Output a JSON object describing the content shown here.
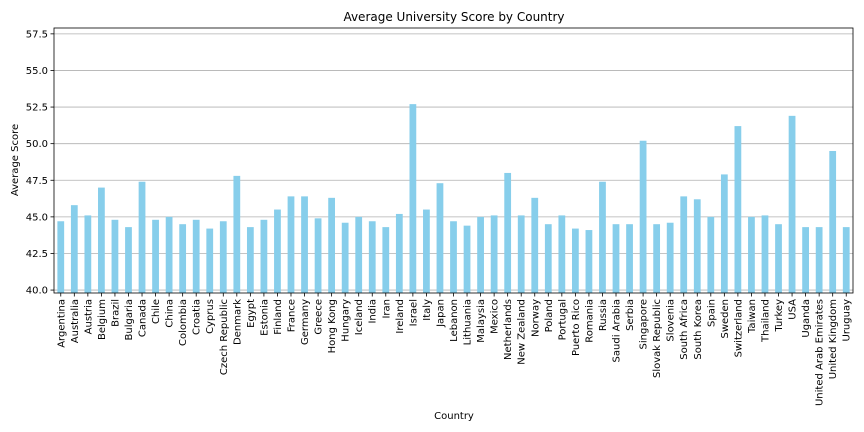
{
  "chart_data": {
    "type": "bar",
    "title": "Average University Score by Country",
    "xlabel": "Country",
    "ylabel": "Average Score",
    "ylim": [
      39.8,
      57.9
    ],
    "yticks": [
      40.0,
      42.5,
      45.0,
      47.5,
      50.0,
      52.5,
      55.0,
      57.5
    ],
    "ytick_labels": [
      "40.0",
      "42.5",
      "45.0",
      "47.5",
      "50.0",
      "52.5",
      "55.0",
      "57.5"
    ],
    "grid": "y",
    "bar_color": "#87ceeb",
    "categories": [
      "Argentina",
      "Australia",
      "Austria",
      "Belgium",
      "Brazil",
      "Bulgaria",
      "Canada",
      "Chile",
      "China",
      "Colombia",
      "Croatia",
      "Cyprus",
      "Czech Republic",
      "Denmark",
      "Egypt",
      "Estonia",
      "Finland",
      "France",
      "Germany",
      "Greece",
      "Hong Kong",
      "Hungary",
      "Iceland",
      "India",
      "Iran",
      "Ireland",
      "Israel",
      "Italy",
      "Japan",
      "Lebanon",
      "Lithuania",
      "Malaysia",
      "Mexico",
      "Netherlands",
      "New Zealand",
      "Norway",
      "Poland",
      "Portugal",
      "Puerto Rico",
      "Romania",
      "Russia",
      "Saudi Arabia",
      "Serbia",
      "Singapore",
      "Slovak Republic",
      "Slovenia",
      "South Africa",
      "South Korea",
      "Spain",
      "Sweden",
      "Switzerland",
      "Taiwan",
      "Thailand",
      "Turkey",
      "USA",
      "Uganda",
      "United Arab Emirates",
      "United Kingdom",
      "Uruguay"
    ],
    "values": [
      44.7,
      45.8,
      45.1,
      47.0,
      44.8,
      44.3,
      47.4,
      44.8,
      45.0,
      44.5,
      44.8,
      44.2,
      44.7,
      47.8,
      44.3,
      44.8,
      45.5,
      46.4,
      46.4,
      44.9,
      46.3,
      44.6,
      45.0,
      44.7,
      44.3,
      45.2,
      52.7,
      45.5,
      47.3,
      44.7,
      44.4,
      45.0,
      45.1,
      48.0,
      45.1,
      46.3,
      44.5,
      45.1,
      44.2,
      44.1,
      47.4,
      44.5,
      44.5,
      50.2,
      44.5,
      44.6,
      46.4,
      46.2,
      45.0,
      47.9,
      51.2,
      45.0,
      45.1,
      44.5,
      51.9,
      44.3,
      44.3,
      49.5,
      44.3
    ]
  }
}
